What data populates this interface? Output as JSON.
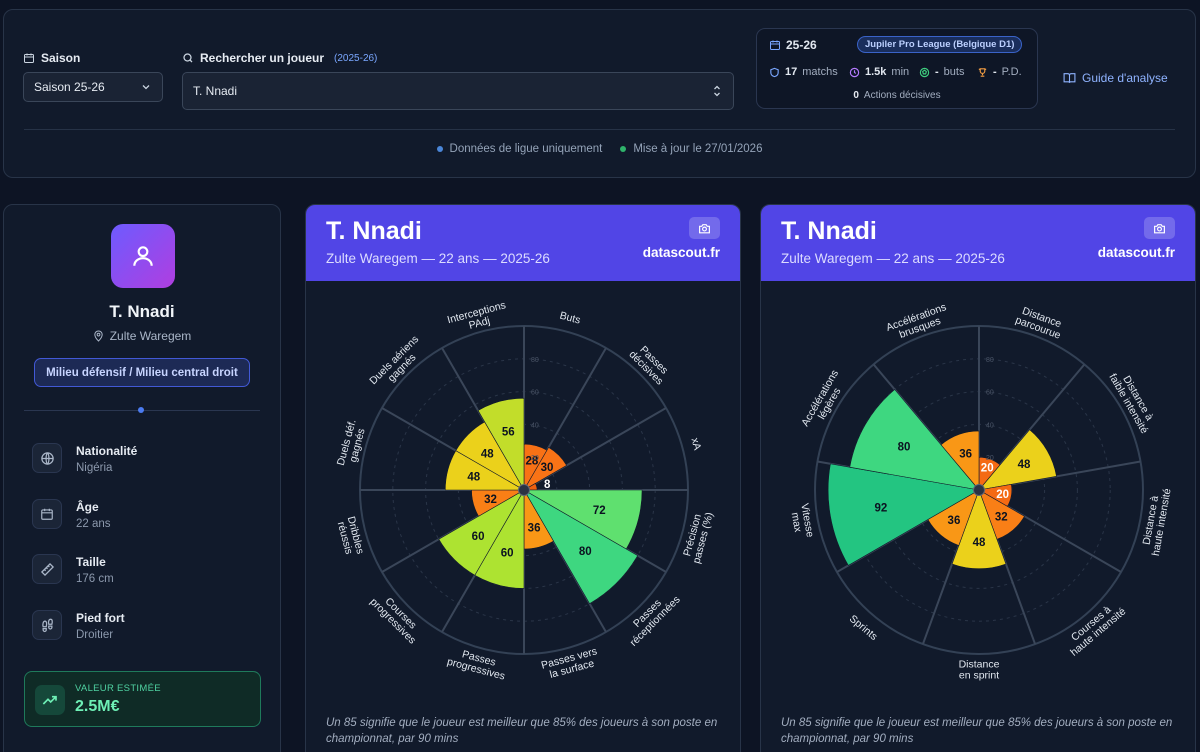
{
  "filters": {
    "season_label": "Saison",
    "season_value": "Saison 25-26",
    "search_label": "Rechercher un joueur",
    "search_sub": "(2025-26)",
    "search_value": "T. Nnadi"
  },
  "summary": {
    "season": "25-26",
    "league": "Jupiler Pro League (Belgique D1)",
    "matches_value": "17",
    "matches_label": "matchs",
    "minutes_value": "1.5k",
    "minutes_label": "min",
    "goals_value": "-",
    "goals_label": "buts",
    "assists_value": "-",
    "assists_label": "P.D.",
    "actions_value": "0",
    "actions_label": "Actions décisives"
  },
  "guide_label": "Guide d'analyse",
  "status": {
    "league_only": "Données de ligue uniquement",
    "updated": "Mise à jour le 27/01/2026"
  },
  "colors": {
    "accent": "#5145e6",
    "league_dot": "#4a86d8",
    "updated_dot": "#2fb36b"
  },
  "profile": {
    "name": "T. Nnadi",
    "club": "Zulte Waregem",
    "position": "Milieu défensif / Milieu central droit",
    "info": [
      {
        "icon": "globe-icon",
        "title": "Nationalité",
        "value": "Nigéria"
      },
      {
        "icon": "calendar-icon",
        "title": "Âge",
        "value": "22 ans"
      },
      {
        "icon": "ruler-icon",
        "title": "Taille",
        "value": "176 cm"
      },
      {
        "icon": "footprints-icon",
        "title": "Pied fort",
        "value": "Droitier"
      }
    ],
    "value_label": "VALEUR ESTIMÉE",
    "value_amount": "2.5M€"
  },
  "radars": [
    {
      "title": "T. Nnadi",
      "subtitle": "Zulte Waregem — 22 ans — 2025-26",
      "site": "datascout.fr",
      "note": "Un 85 signifie que le joueur est meilleur que 85% des joueurs à son poste en championnat, par 90 mins",
      "ticks": [
        "20",
        "40",
        "60",
        "80"
      ],
      "metrics": [
        {
          "label": "Buts",
          "value": 28
        },
        {
          "label": "Passes décisives",
          "value": 30
        },
        {
          "label": "xA",
          "value": 8
        },
        {
          "label": "Précision passes (%)",
          "value": 72
        },
        {
          "label": "Passes réceptionnées",
          "value": 80
        },
        {
          "label": "Passes vers la surface",
          "value": 36
        },
        {
          "label": "Passes progressives",
          "value": 60
        },
        {
          "label": "Courses progressives",
          "value": 60
        },
        {
          "label": "Dribbles réussis",
          "value": 32
        },
        {
          "label": "Duels déf. gagnés",
          "value": 48
        },
        {
          "label": "Duels aériens gagnés",
          "value": 48
        },
        {
          "label": "Interceptions PAdj",
          "value": 56
        }
      ]
    },
    {
      "title": "T. Nnadi",
      "subtitle": "Zulte Waregem — 22 ans — 2025-26",
      "site": "datascout.fr",
      "note": "Un 85 signifie que le joueur est meilleur que 85% des joueurs à son poste en championnat, par 90 mins",
      "ticks": [
        "20",
        "40",
        "60",
        "80"
      ],
      "metrics": [
        {
          "label": "Distance parcourue",
          "value": 20
        },
        {
          "label": "Distance à faible intensité",
          "value": 48
        },
        {
          "label": "Distance à haute intensité",
          "value": 20
        },
        {
          "label": "Courses à haute intensité",
          "value": 32
        },
        {
          "label": "Distance en sprint",
          "value": 48
        },
        {
          "label": "Sprints",
          "value": 36
        },
        {
          "label": "Vitesse max",
          "value": 92
        },
        {
          "label": "Accélérations légères",
          "value": 80
        },
        {
          "label": "Accélérations brusques",
          "value": 36
        }
      ]
    }
  ]
}
